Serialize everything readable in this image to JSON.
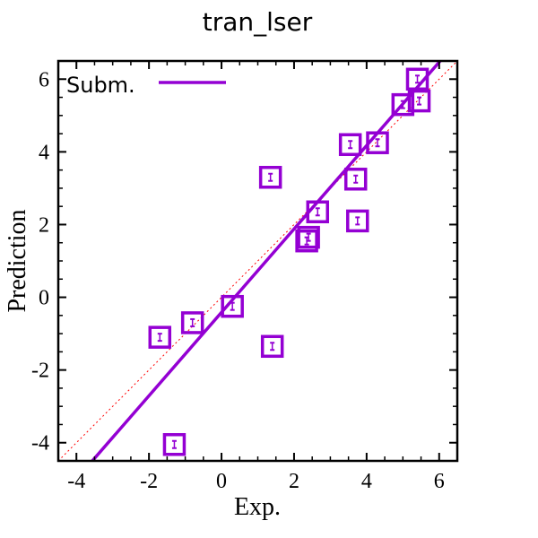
{
  "chart_data": {
    "type": "scatter",
    "title": "tran_lser",
    "xlabel": "Exp.",
    "ylabel": "Prediction",
    "xlim": [
      -4.5,
      6.5
    ],
    "ylim": [
      -4.5,
      6.5
    ],
    "x_ticks": [
      "-4",
      "-2",
      "0",
      "2",
      "4",
      "6"
    ],
    "y_ticks": [
      "-4",
      "-2",
      "0",
      "2",
      "4",
      "6"
    ],
    "x_tick_values": [
      -4,
      -2,
      0,
      2,
      4,
      6
    ],
    "y_tick_values": [
      -4,
      -2,
      0,
      2,
      4,
      6
    ],
    "grid": false,
    "legend_position": "top-left",
    "series": [
      {
        "name": "Subm.",
        "color": "#9400D3",
        "marker": "square",
        "points": [
          {
            "x": 5.4,
            "y": 6.0
          },
          {
            "x": 5.0,
            "y": 5.3
          },
          {
            "x": 5.45,
            "y": 5.4
          },
          {
            "x": 4.3,
            "y": 4.25
          },
          {
            "x": 3.55,
            "y": 4.2
          },
          {
            "x": 3.7,
            "y": 3.25
          },
          {
            "x": 3.75,
            "y": 2.1
          },
          {
            "x": 2.65,
            "y": 2.35
          },
          {
            "x": 2.4,
            "y": 1.65
          },
          {
            "x": 2.35,
            "y": 1.55
          },
          {
            "x": 1.35,
            "y": 3.3
          },
          {
            "x": 0.3,
            "y": -0.25
          },
          {
            "x": -0.8,
            "y": -0.7
          },
          {
            "x": -1.7,
            "y": -1.1
          },
          {
            "x": 1.4,
            "y": -1.35
          },
          {
            "x": -1.3,
            "y": -4.05
          }
        ]
      }
    ],
    "fit_line": {
      "slope": 1.1471,
      "intercept": -0.4147,
      "color": "#9400D3"
    },
    "identity_line": {
      "color": "#ff0000",
      "style": "dotted"
    }
  }
}
